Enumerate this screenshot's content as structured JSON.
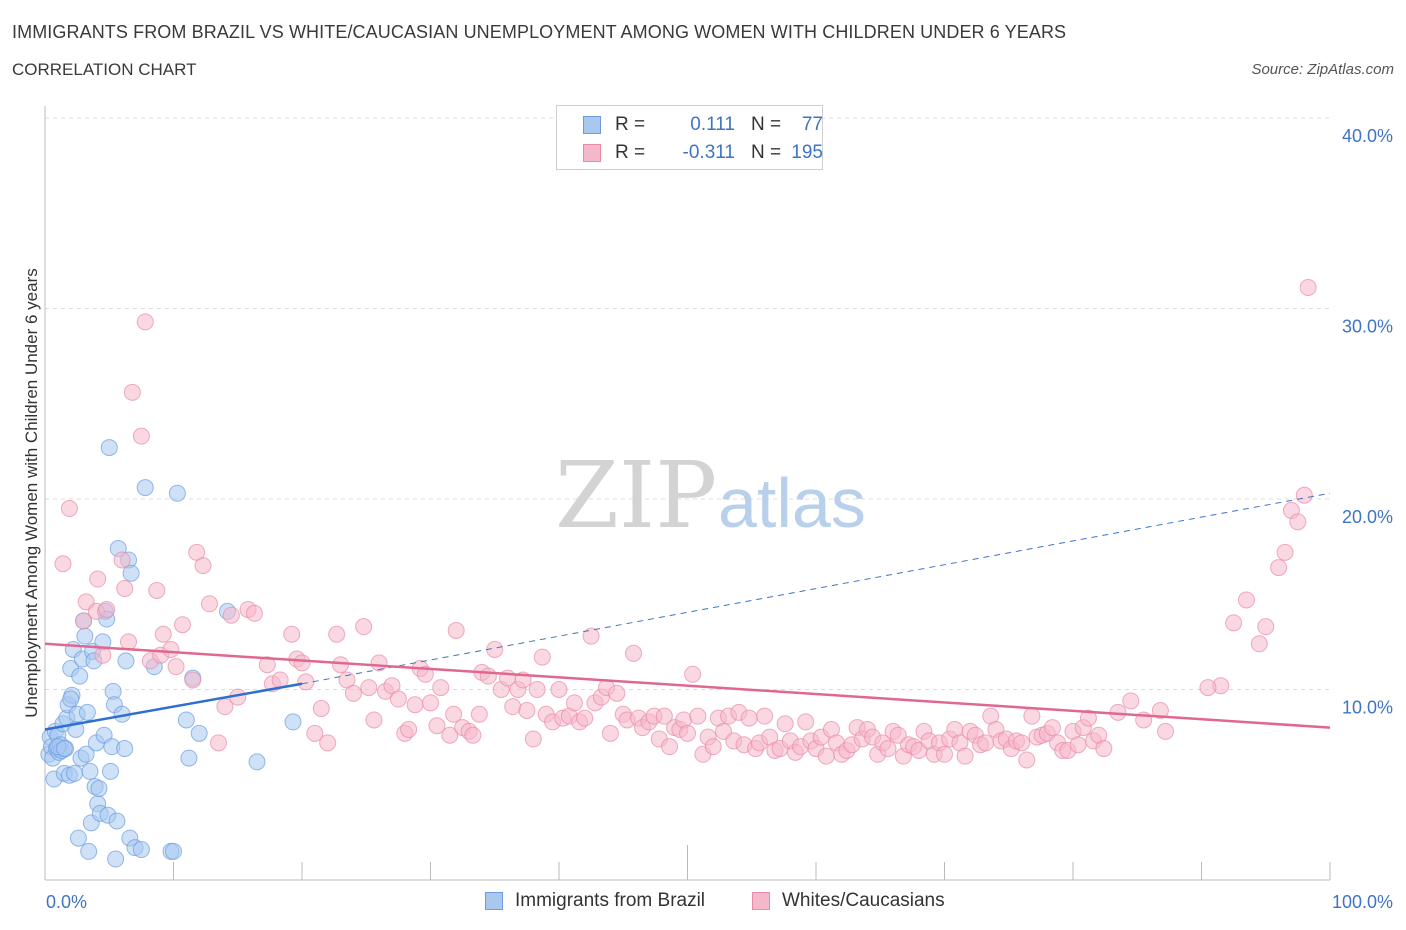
{
  "header": {
    "title": "IMMIGRANTS FROM BRAZIL VS WHITE/CAUCASIAN UNEMPLOYMENT AMONG WOMEN WITH CHILDREN UNDER 6 YEARS",
    "subtitle": "CORRELATION CHART",
    "source": "Source: ZipAtlas.com"
  },
  "watermark": {
    "zip": "ZIP",
    "atlas": "atlas"
  },
  "legend": {
    "rows": [
      {
        "r_label": "R = ",
        "r_value": "0.111",
        "n_label": "N = ",
        "n_value": "77",
        "color": "#a8c8f0",
        "border": "#6c9be0"
      },
      {
        "r_label": "R = ",
        "r_value": "-0.311",
        "n_label": "N = ",
        "n_value": "195",
        "color": "#f5b8cb",
        "border": "#e88aa8"
      }
    ]
  },
  "bottom_legend": {
    "items": [
      {
        "label": "Immigrants from Brazil",
        "color": "#a8c8f0",
        "border": "#6c9be0"
      },
      {
        "label": "Whites/Caucasians",
        "color": "#f5b8cb",
        "border": "#e88aa8"
      }
    ]
  },
  "chart_data": {
    "type": "scatter",
    "title": "IMMIGRANTS FROM BRAZIL VS WHITE/CAUCASIAN UNEMPLOYMENT AMONG WOMEN WITH CHILDREN UNDER 6 YEARS",
    "subtitle": "CORRELATION CHART",
    "xlabel": "",
    "ylabel": "Unemployment Among Women with Children Under 6 years",
    "xlim": [
      0,
      100
    ],
    "ylim": [
      0,
      40
    ],
    "x_tick_labels": [
      "0.0%",
      "100.0%"
    ],
    "y_ticks": [
      10,
      20,
      30,
      40
    ],
    "y_tick_labels": [
      "10.0%",
      "20.0%",
      "30.0%",
      "40.0%"
    ],
    "grid": true,
    "legend_position": "top-center",
    "series": [
      {
        "name": "Immigrants from Brazil",
        "color": "#6c9be0",
        "fill": "#a8c8f0",
        "trend": {
          "x": [
            0,
            20
          ],
          "y": [
            7.9,
            10.3
          ],
          "dashed_extension_to": [
            100,
            20.3
          ]
        },
        "points": [
          [
            0.3,
            6.6
          ],
          [
            0.4,
            7.5
          ],
          [
            0.5,
            7.0
          ],
          [
            0.6,
            6.4
          ],
          [
            0.7,
            5.3
          ],
          [
            0.8,
            7.8
          ],
          [
            0.9,
            6.9
          ],
          [
            1.0,
            7.6
          ],
          [
            1.1,
            6.7
          ],
          [
            1.2,
            7.1
          ],
          [
            1.3,
            6.8
          ],
          [
            1.4,
            8.2
          ],
          [
            1.5,
            5.6
          ],
          [
            1.6,
            6.9
          ],
          [
            1.7,
            8.5
          ],
          [
            1.8,
            9.2
          ],
          [
            1.9,
            5.5
          ],
          [
            2.0,
            11.1
          ],
          [
            2.1,
            9.7
          ],
          [
            2.2,
            12.1
          ],
          [
            2.3,
            5.6
          ],
          [
            2.4,
            7.9
          ],
          [
            2.5,
            8.7
          ],
          [
            2.6,
            2.2
          ],
          [
            2.7,
            10.7
          ],
          [
            2.8,
            6.4
          ],
          [
            2.9,
            11.6
          ],
          [
            3.0,
            13.6
          ],
          [
            3.1,
            12.8
          ],
          [
            3.2,
            6.6
          ],
          [
            3.3,
            8.8
          ],
          [
            3.4,
            1.5
          ],
          [
            3.5,
            5.7
          ],
          [
            3.6,
            3.0
          ],
          [
            3.7,
            12.0
          ],
          [
            3.8,
            11.5
          ],
          [
            3.9,
            4.9
          ],
          [
            4.0,
            7.2
          ],
          [
            4.1,
            4.0
          ],
          [
            4.2,
            4.8
          ],
          [
            4.3,
            3.5
          ],
          [
            4.5,
            12.5
          ],
          [
            4.6,
            7.6
          ],
          [
            4.7,
            14.1
          ],
          [
            4.8,
            13.7
          ],
          [
            4.9,
            3.4
          ],
          [
            5.0,
            22.7
          ],
          [
            5.1,
            5.7
          ],
          [
            5.2,
            7.0
          ],
          [
            5.3,
            9.9
          ],
          [
            5.4,
            9.2
          ],
          [
            5.5,
            1.1
          ],
          [
            5.6,
            3.1
          ],
          [
            5.7,
            17.4
          ],
          [
            6.0,
            8.7
          ],
          [
            6.2,
            6.9
          ],
          [
            6.3,
            11.5
          ],
          [
            6.5,
            16.8
          ],
          [
            6.6,
            2.2
          ],
          [
            6.7,
            16.1
          ],
          [
            7.0,
            1.7
          ],
          [
            7.5,
            1.6
          ],
          [
            7.8,
            20.6
          ],
          [
            8.5,
            11.2
          ],
          [
            9.8,
            1.5
          ],
          [
            10.0,
            1.5
          ],
          [
            10.3,
            20.3
          ],
          [
            11.0,
            8.4
          ],
          [
            11.2,
            6.4
          ],
          [
            11.5,
            10.6
          ],
          [
            12.0,
            7.7
          ],
          [
            14.2,
            14.1
          ],
          [
            16.5,
            6.2
          ],
          [
            19.3,
            8.3
          ],
          [
            1.0,
            7.0
          ],
          [
            1.5,
            6.9
          ],
          [
            2.0,
            9.5
          ]
        ]
      },
      {
        "name": "Whites/Caucasians",
        "color": "#e88aa8",
        "fill": "#f5b8cb",
        "trend": {
          "x": [
            0,
            100
          ],
          "y": [
            12.4,
            8.0
          ]
        },
        "points": [
          [
            1.4,
            16.6
          ],
          [
            1.9,
            19.5
          ],
          [
            3.0,
            13.6
          ],
          [
            3.2,
            14.6
          ],
          [
            4.0,
            14.1
          ],
          [
            4.1,
            15.8
          ],
          [
            4.5,
            11.8
          ],
          [
            4.8,
            14.2
          ],
          [
            6.0,
            16.8
          ],
          [
            6.2,
            15.3
          ],
          [
            6.5,
            12.5
          ],
          [
            6.8,
            25.6
          ],
          [
            7.5,
            23.3
          ],
          [
            7.8,
            29.3
          ],
          [
            8.2,
            11.5
          ],
          [
            8.7,
            15.2
          ],
          [
            9.0,
            11.8
          ],
          [
            9.2,
            12.9
          ],
          [
            9.8,
            12.1
          ],
          [
            10.2,
            11.2
          ],
          [
            10.7,
            13.4
          ],
          [
            11.5,
            10.5
          ],
          [
            11.8,
            17.2
          ],
          [
            12.3,
            16.5
          ],
          [
            12.8,
            14.5
          ],
          [
            13.5,
            7.2
          ],
          [
            14.0,
            9.1
          ],
          [
            14.5,
            13.9
          ],
          [
            15.0,
            9.6
          ],
          [
            15.8,
            14.2
          ],
          [
            16.3,
            14.0
          ],
          [
            17.3,
            11.3
          ],
          [
            17.7,
            10.3
          ],
          [
            18.3,
            10.5
          ],
          [
            19.2,
            12.9
          ],
          [
            19.6,
            11.6
          ],
          [
            20.0,
            11.4
          ],
          [
            20.3,
            10.4
          ],
          [
            21.0,
            7.7
          ],
          [
            21.5,
            9.0
          ],
          [
            22.0,
            7.2
          ],
          [
            22.7,
            12.9
          ],
          [
            23.0,
            11.3
          ],
          [
            23.5,
            10.5
          ],
          [
            24.0,
            9.8
          ],
          [
            24.8,
            13.3
          ],
          [
            25.2,
            10.1
          ],
          [
            25.6,
            8.4
          ],
          [
            26.0,
            11.4
          ],
          [
            26.5,
            9.9
          ],
          [
            27.0,
            10.2
          ],
          [
            27.5,
            9.5
          ],
          [
            28.0,
            7.7
          ],
          [
            28.3,
            7.9
          ],
          [
            28.8,
            9.2
          ],
          [
            29.2,
            11.1
          ],
          [
            29.6,
            10.8
          ],
          [
            30.0,
            9.3
          ],
          [
            30.5,
            8.1
          ],
          [
            30.8,
            10.1
          ],
          [
            31.5,
            7.6
          ],
          [
            31.8,
            8.7
          ],
          [
            32.0,
            13.1
          ],
          [
            32.5,
            8.0
          ],
          [
            33.0,
            7.8
          ],
          [
            33.3,
            7.6
          ],
          [
            33.8,
            8.7
          ],
          [
            34.0,
            10.9
          ],
          [
            34.5,
            10.7
          ],
          [
            35.0,
            12.1
          ],
          [
            35.5,
            10.0
          ],
          [
            36.0,
            10.6
          ],
          [
            36.4,
            9.1
          ],
          [
            36.8,
            10.0
          ],
          [
            37.2,
            10.5
          ],
          [
            37.5,
            8.9
          ],
          [
            38.0,
            7.4
          ],
          [
            38.3,
            10.0
          ],
          [
            38.7,
            11.7
          ],
          [
            39.0,
            8.7
          ],
          [
            39.5,
            8.3
          ],
          [
            40.0,
            10.0
          ],
          [
            40.3,
            8.5
          ],
          [
            40.8,
            8.6
          ],
          [
            41.2,
            9.3
          ],
          [
            41.6,
            8.3
          ],
          [
            42.0,
            8.5
          ],
          [
            42.5,
            12.8
          ],
          [
            42.8,
            9.3
          ],
          [
            43.3,
            9.6
          ],
          [
            43.7,
            10.1
          ],
          [
            44.0,
            7.7
          ],
          [
            44.5,
            9.8
          ],
          [
            45.0,
            8.7
          ],
          [
            45.3,
            8.4
          ],
          [
            45.8,
            11.9
          ],
          [
            46.2,
            8.5
          ],
          [
            46.5,
            8.0
          ],
          [
            47.0,
            8.3
          ],
          [
            47.4,
            8.6
          ],
          [
            47.8,
            7.4
          ],
          [
            48.2,
            8.6
          ],
          [
            48.6,
            7.0
          ],
          [
            49.0,
            8.0
          ],
          [
            49.4,
            7.9
          ],
          [
            49.7,
            8.4
          ],
          [
            50.0,
            7.7
          ],
          [
            50.4,
            10.8
          ],
          [
            50.8,
            8.6
          ],
          [
            51.2,
            6.6
          ],
          [
            51.6,
            7.5
          ],
          [
            52.0,
            7.0
          ],
          [
            52.4,
            8.5
          ],
          [
            52.8,
            7.8
          ],
          [
            53.2,
            8.6
          ],
          [
            53.6,
            7.3
          ],
          [
            54.0,
            8.8
          ],
          [
            54.4,
            7.1
          ],
          [
            54.8,
            8.5
          ],
          [
            55.3,
            6.9
          ],
          [
            55.6,
            7.2
          ],
          [
            56.0,
            8.6
          ],
          [
            56.4,
            7.5
          ],
          [
            56.8,
            6.8
          ],
          [
            57.2,
            6.9
          ],
          [
            57.6,
            8.2
          ],
          [
            58.0,
            7.3
          ],
          [
            58.4,
            6.7
          ],
          [
            58.8,
            7.0
          ],
          [
            59.2,
            8.3
          ],
          [
            59.6,
            7.3
          ],
          [
            60.0,
            6.9
          ],
          [
            60.4,
            7.5
          ],
          [
            60.8,
            6.5
          ],
          [
            61.2,
            7.9
          ],
          [
            61.6,
            7.2
          ],
          [
            62.0,
            6.6
          ],
          [
            62.4,
            6.8
          ],
          [
            62.8,
            7.1
          ],
          [
            63.2,
            8.0
          ],
          [
            63.6,
            7.4
          ],
          [
            64.0,
            7.9
          ],
          [
            64.4,
            7.5
          ],
          [
            64.8,
            6.6
          ],
          [
            65.2,
            7.2
          ],
          [
            65.6,
            6.9
          ],
          [
            66.0,
            7.8
          ],
          [
            66.4,
            7.6
          ],
          [
            66.8,
            6.5
          ],
          [
            67.2,
            7.1
          ],
          [
            67.6,
            7.0
          ],
          [
            68.0,
            6.8
          ],
          [
            68.4,
            7.8
          ],
          [
            68.8,
            7.3
          ],
          [
            69.2,
            6.6
          ],
          [
            69.6,
            7.2
          ],
          [
            70.0,
            6.6
          ],
          [
            70.4,
            7.4
          ],
          [
            70.8,
            7.9
          ],
          [
            71.2,
            7.2
          ],
          [
            71.6,
            6.5
          ],
          [
            72.0,
            7.8
          ],
          [
            72.4,
            7.6
          ],
          [
            72.8,
            7.1
          ],
          [
            73.2,
            7.2
          ],
          [
            73.6,
            8.6
          ],
          [
            74.0,
            7.9
          ],
          [
            74.4,
            7.3
          ],
          [
            74.8,
            7.4
          ],
          [
            75.2,
            6.9
          ],
          [
            75.6,
            7.3
          ],
          [
            76.0,
            7.2
          ],
          [
            76.4,
            6.3
          ],
          [
            76.8,
            8.6
          ],
          [
            77.2,
            7.5
          ],
          [
            77.6,
            7.6
          ],
          [
            78.0,
            7.7
          ],
          [
            78.4,
            8.0
          ],
          [
            78.8,
            7.2
          ],
          [
            79.2,
            6.8
          ],
          [
            79.6,
            6.8
          ],
          [
            80.0,
            7.8
          ],
          [
            80.4,
            7.1
          ],
          [
            80.8,
            8.0
          ],
          [
            81.2,
            8.5
          ],
          [
            81.6,
            7.3
          ],
          [
            82.0,
            7.6
          ],
          [
            82.4,
            6.9
          ],
          [
            86.8,
            8.9
          ],
          [
            87.2,
            7.8
          ],
          [
            91.5,
            10.2
          ],
          [
            92.5,
            13.5
          ],
          [
            93.5,
            14.7
          ],
          [
            94.5,
            12.4
          ],
          [
            95.0,
            13.3
          ],
          [
            96.0,
            16.4
          ],
          [
            96.5,
            17.2
          ],
          [
            97.0,
            19.4
          ],
          [
            97.5,
            18.8
          ],
          [
            98.0,
            20.2
          ],
          [
            98.3,
            31.1
          ],
          [
            83.5,
            8.8
          ],
          [
            84.5,
            9.4
          ],
          [
            85.5,
            8.4
          ],
          [
            90.5,
            10.1
          ]
        ]
      }
    ]
  }
}
